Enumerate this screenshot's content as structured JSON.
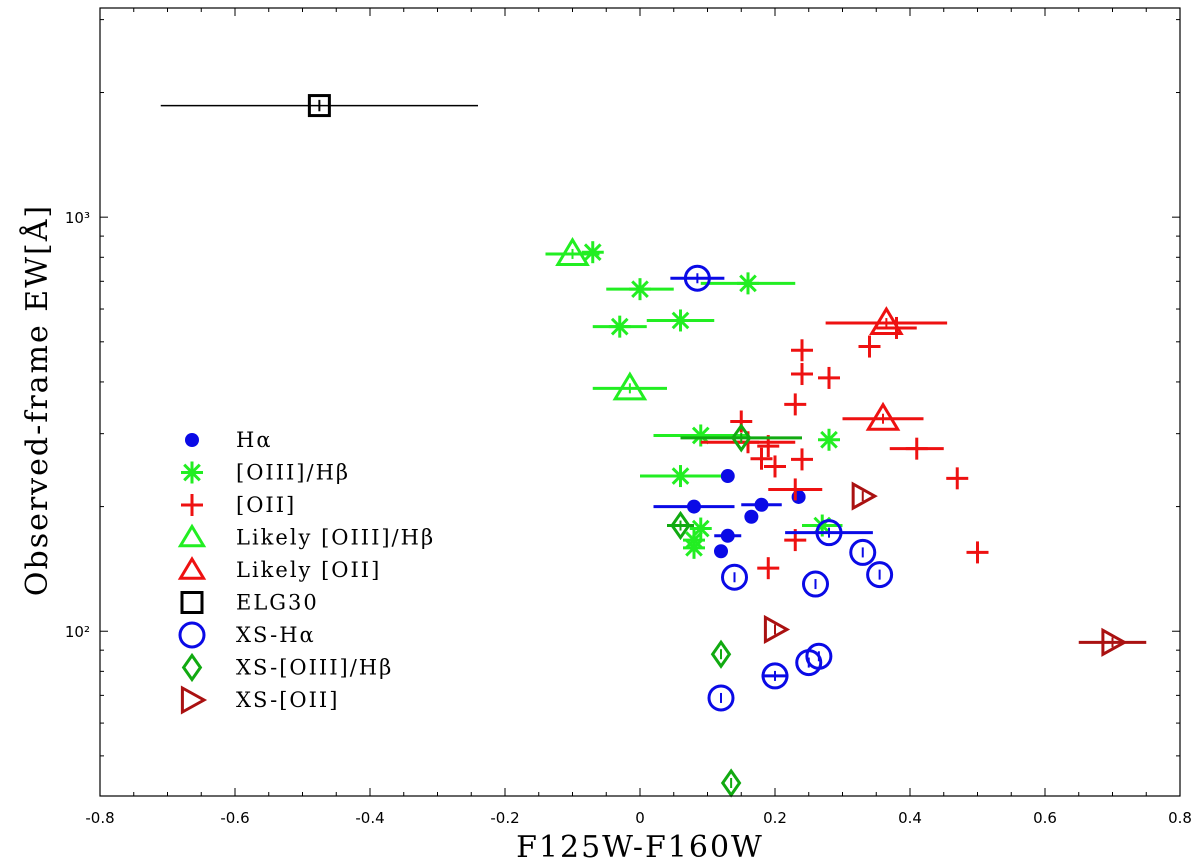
{
  "chart_data": {
    "type": "scatter",
    "title": "",
    "xlabel": "F125W-F160W",
    "ylabel": "Observed-frame EW[Å]",
    "xlim": [
      -0.8,
      0.8
    ],
    "ylim": [
      40,
      3200
    ],
    "yscale": "log",
    "grid": false,
    "legend_position": "left",
    "x_ticks": [
      "-0.8",
      "-0.6",
      "-0.4",
      "-0.2",
      "0",
      "0.2",
      "0.4",
      "0.6",
      "0.8"
    ],
    "y_ticks": [
      {
        "value": 100,
        "label": "10²"
      },
      {
        "value": 1000,
        "label": "10³"
      }
    ],
    "series": [
      {
        "name": "Hα",
        "marker": "dot",
        "color": "#0a0ae6",
        "points": [
          {
            "x": 0.13,
            "y": 237
          },
          {
            "x": 0.08,
            "y": 200,
            "xerr": 0.06
          },
          {
            "x": 0.18,
            "y": 202,
            "xerr": 0.03
          },
          {
            "x": 0.235,
            "y": 211
          },
          {
            "x": 0.165,
            "y": 189
          },
          {
            "x": 0.13,
            "y": 170,
            "xerr": 0.02
          },
          {
            "x": 0.12,
            "y": 156
          }
        ]
      },
      {
        "name": "[OIII]/Hβ",
        "marker": "asterisk",
        "color": "#22ee22",
        "points": [
          {
            "x": -0.07,
            "y": 823
          },
          {
            "x": 0.0,
            "y": 670,
            "xerr": 0.05
          },
          {
            "x": 0.16,
            "y": 692,
            "xerr": 0.07
          },
          {
            "x": -0.03,
            "y": 544,
            "xerr": 0.04
          },
          {
            "x": 0.06,
            "y": 563,
            "xerr": 0.05
          },
          {
            "x": 0.09,
            "y": 297,
            "xerr": 0.07
          },
          {
            "x": 0.28,
            "y": 290
          },
          {
            "x": 0.06,
            "y": 237,
            "xerr": 0.06
          },
          {
            "x": 0.09,
            "y": 177
          },
          {
            "x": 0.08,
            "y": 166
          },
          {
            "x": 0.08,
            "y": 159
          },
          {
            "x": 0.27,
            "y": 180,
            "xerr": 0.03
          }
        ]
      },
      {
        "name": "[OII]",
        "marker": "plus",
        "color": "#ee1111",
        "points": [
          {
            "x": 0.38,
            "y": 540,
            "xerr": 0.03
          },
          {
            "x": 0.34,
            "y": 487
          },
          {
            "x": 0.24,
            "y": 477
          },
          {
            "x": 0.24,
            "y": 418
          },
          {
            "x": 0.28,
            "y": 409
          },
          {
            "x": 0.23,
            "y": 353
          },
          {
            "x": 0.15,
            "y": 321
          },
          {
            "x": 0.16,
            "y": 286,
            "xerr": 0.07
          },
          {
            "x": 0.19,
            "y": 280
          },
          {
            "x": 0.18,
            "y": 261
          },
          {
            "x": 0.2,
            "y": 250
          },
          {
            "x": 0.24,
            "y": 260
          },
          {
            "x": 0.41,
            "y": 276,
            "xerr": 0.04
          },
          {
            "x": 0.47,
            "y": 234
          },
          {
            "x": 0.23,
            "y": 220,
            "xerr": 0.04
          },
          {
            "x": 0.23,
            "y": 166
          },
          {
            "x": 0.19,
            "y": 142
          },
          {
            "x": 0.5,
            "y": 155
          }
        ]
      },
      {
        "name": "Likely [OIII]/Hβ",
        "marker": "triangle",
        "color": "#22ee22",
        "points": [
          {
            "x": -0.1,
            "y": 815,
            "xerr": 0.04
          },
          {
            "x": -0.015,
            "y": 386,
            "xerr": 0.055
          }
        ]
      },
      {
        "name": "Likely [OII]",
        "marker": "triangle",
        "color": "#ee1111",
        "points": [
          {
            "x": 0.365,
            "y": 555,
            "xerr": 0.09
          },
          {
            "x": 0.36,
            "y": 326,
            "xerr": 0.06
          }
        ]
      },
      {
        "name": "ELG30",
        "marker": "square",
        "color": "#000000",
        "points": [
          {
            "x": -0.475,
            "y": 1860,
            "xerr": 0.235,
            "yerr": 60
          }
        ]
      },
      {
        "name": "XS-Hα",
        "marker": "circle",
        "color": "#0a0ae6",
        "points": [
          {
            "x": 0.085,
            "y": 712,
            "xerr": 0.04
          },
          {
            "x": 0.28,
            "y": 173,
            "xerr": 0.065
          },
          {
            "x": 0.33,
            "y": 155
          },
          {
            "x": 0.355,
            "y": 137
          },
          {
            "x": 0.14,
            "y": 135
          },
          {
            "x": 0.26,
            "y": 130
          },
          {
            "x": 0.265,
            "y": 87
          },
          {
            "x": 0.25,
            "y": 84
          },
          {
            "x": 0.2,
            "y": 78,
            "xerr": 0.02
          },
          {
            "x": 0.12,
            "y": 69
          }
        ]
      },
      {
        "name": "XS-[OIII]/Hβ",
        "marker": "diamond",
        "color": "#11aa11",
        "points": [
          {
            "x": 0.15,
            "y": 293,
            "xerr": 0.09
          },
          {
            "x": 0.06,
            "y": 180,
            "xerr": 0.02
          },
          {
            "x": 0.12,
            "y": 88
          },
          {
            "x": 0.135,
            "y": 43
          }
        ]
      },
      {
        "name": "XS-[OII]",
        "marker": "triangle-right",
        "color": "#aa1111",
        "points": [
          {
            "x": 0.33,
            "y": 212
          },
          {
            "x": 0.2,
            "y": 101
          },
          {
            "x": 0.7,
            "y": 94,
            "xerr": 0.05
          }
        ]
      }
    ]
  }
}
